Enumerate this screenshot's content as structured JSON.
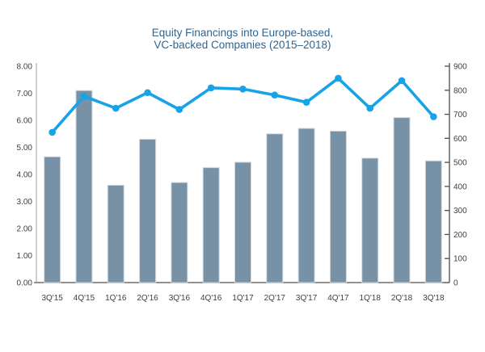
{
  "title": {
    "line1": "Equity Financings into Europe-based,",
    "line2": "VC-backed Companies (2015–2018)"
  },
  "colors": {
    "bar_fill": "#7791A6",
    "bar_border": "#D5D8DB",
    "line": "#17A3E8",
    "title_text": "#2F6491",
    "axis_text": "#404040",
    "left_axis_line": "#ADADAD",
    "bottom_axis_line": "#6E6E6E",
    "right_axis_line": "#4D4D4D"
  },
  "chart_data": {
    "type": "bar",
    "title": "Equity Financings into Europe-based, VC-backed Companies (2015–2018)",
    "categories": [
      "3Q'15",
      "4Q'15",
      "1Q'16",
      "2Q'16",
      "3Q'16",
      "4Q'16",
      "1Q'17",
      "2Q'17",
      "3Q'17",
      "4Q'17",
      "1Q'18",
      "2Q'18",
      "3Q'18"
    ],
    "series": [
      {
        "name": "bar-series",
        "type": "bar",
        "axis": "left",
        "values": [
          4.65,
          7.1,
          3.6,
          5.3,
          3.7,
          4.25,
          4.45,
          5.5,
          5.7,
          5.6,
          4.6,
          6.1,
          4.5
        ]
      },
      {
        "name": "line-series",
        "type": "line",
        "axis": "right",
        "values": [
          625,
          775,
          725,
          790,
          720,
          810,
          805,
          780,
          750,
          850,
          725,
          840,
          690
        ]
      }
    ],
    "left_axis": {
      "min": 0,
      "max": 8,
      "step": 1,
      "tick_labels": [
        "0.00",
        "1.00",
        "2.00",
        "3.00",
        "4.00",
        "5.00",
        "6.00",
        "7.00",
        "8.00"
      ]
    },
    "right_axis": {
      "min": 0,
      "max": 900,
      "step": 100,
      "tick_labels": [
        "0",
        "100",
        "200",
        "300",
        "400",
        "500",
        "600",
        "700",
        "800",
        "900"
      ]
    },
    "grid": false,
    "legend": "none"
  }
}
